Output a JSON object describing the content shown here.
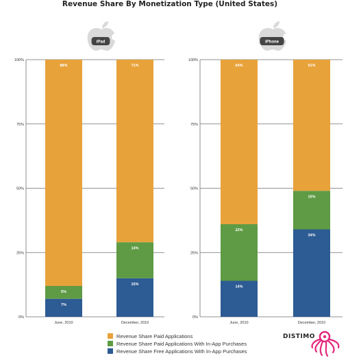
{
  "title": "Revenue Share By Monetization Type (United States)",
  "colors": {
    "paid": "#e8a23a",
    "paid_iap": "#5e9b44",
    "free_iap": "#2d5b93",
    "grid": "#6e6e6e",
    "logo_bg": "#444444",
    "brand_accent": "#e5267c"
  },
  "legend": [
    {
      "key": "paid",
      "label": "Revenue Share Paid Applications"
    },
    {
      "key": "paid_iap",
      "label": "Revenue Share Paid Applications With In-App Purchases"
    },
    {
      "key": "free_iap",
      "label": "Revenue Share Free Applications With In-App Purchases"
    }
  ],
  "brand": {
    "name": "DISTIMO"
  },
  "chart_data": [
    {
      "type": "bar",
      "stacked": true,
      "device_label": "iPad",
      "logo_icon": "apple-logo-icon",
      "categories": [
        "June, 2010",
        "December, 2010"
      ],
      "y_ticks": [
        "0%",
        "25%",
        "50%",
        "75%",
        "100%"
      ],
      "ylim": [
        0,
        100
      ],
      "series": [
        {
          "key": "free_iap",
          "values": [
            7,
            15
          ],
          "labels": [
            "7%",
            "15%"
          ]
        },
        {
          "key": "paid_iap",
          "values": [
            5,
            14
          ],
          "labels": [
            "5%",
            "14%"
          ]
        },
        {
          "key": "paid",
          "values": [
            88,
            71
          ],
          "labels": [
            "88%",
            "71%"
          ]
        }
      ]
    },
    {
      "type": "bar",
      "stacked": true,
      "device_label": "iPhone",
      "logo_icon": "apple-logo-icon",
      "categories": [
        "June, 2010",
        "December, 2010"
      ],
      "y_ticks": [
        "0%",
        "25%",
        "50%",
        "75%",
        "100%"
      ],
      "ylim": [
        0,
        100
      ],
      "series": [
        {
          "key": "free_iap",
          "values": [
            14,
            34
          ],
          "labels": [
            "14%",
            "34%"
          ]
        },
        {
          "key": "paid_iap",
          "values": [
            22,
            15
          ],
          "labels": [
            "22%",
            "15%"
          ]
        },
        {
          "key": "paid",
          "values": [
            64,
            51
          ],
          "labels": [
            "64%",
            "51%"
          ]
        }
      ]
    }
  ]
}
